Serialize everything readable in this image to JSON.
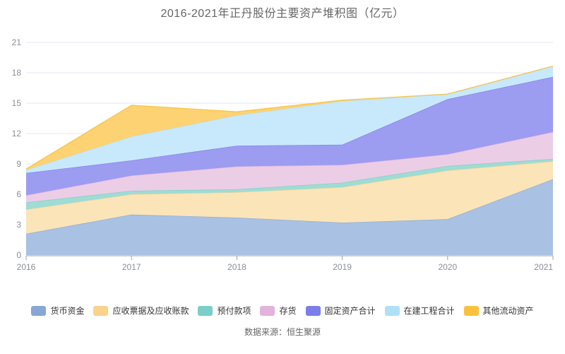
{
  "title": "2016-2021年正丹股份主要资产堆积图（亿元）",
  "source": "数据来源：恒生聚源",
  "chart_data": {
    "type": "area",
    "stacked": true,
    "title": "2016-2021年正丹股份主要资产堆积图（亿元）",
    "categories": [
      "2016",
      "2017",
      "2018",
      "2019",
      "2020",
      "2021"
    ],
    "series": [
      {
        "name": "货币资金",
        "color": "#87A7D7",
        "fill": "#A9C1E3",
        "values": [
          2.1,
          4.0,
          3.7,
          3.2,
          3.55,
          7.5
        ]
      },
      {
        "name": "应收票据及应收账款",
        "color": "#F9D28C",
        "fill": "#FBE4B7",
        "values": [
          2.4,
          2.0,
          2.5,
          3.5,
          4.8,
          1.75
        ]
      },
      {
        "name": "预付款项",
        "color": "#79CFC7",
        "fill": "#9EDCD4",
        "values": [
          0.7,
          0.35,
          0.3,
          0.45,
          0.45,
          0.25
        ]
      },
      {
        "name": "存货",
        "color": "#E2B3DC",
        "fill": "#ECCDE6",
        "values": [
          0.7,
          1.5,
          2.25,
          1.75,
          1.15,
          2.65
        ]
      },
      {
        "name": "固定资产合计",
        "color": "#7D7DE9",
        "fill": "#9C9CF1",
        "values": [
          2.2,
          1.5,
          2.05,
          2.0,
          5.45,
          5.45
        ]
      },
      {
        "name": "在建工程合计",
        "color": "#AFE0F8",
        "fill": "#C8E9FB",
        "values": [
          0.3,
          2.35,
          3.0,
          4.3,
          0.5,
          1.05
        ]
      },
      {
        "name": "其他流动资产",
        "color": "#FBC13C",
        "fill": "#FDD272",
        "values": [
          0.1,
          3.1,
          0.35,
          0.1,
          0.0,
          0.0
        ]
      }
    ],
    "xlabel": "",
    "ylabel": "",
    "ylim": [
      0,
      21
    ],
    "yticks": [
      0,
      3,
      6,
      9,
      12,
      15,
      18,
      21
    ],
    "grid": "horizontal",
    "legend_position": "bottom",
    "axis_color": "#9AA1B1",
    "grid_color": "#E3E7F1",
    "label_color": "#8B8E99"
  }
}
